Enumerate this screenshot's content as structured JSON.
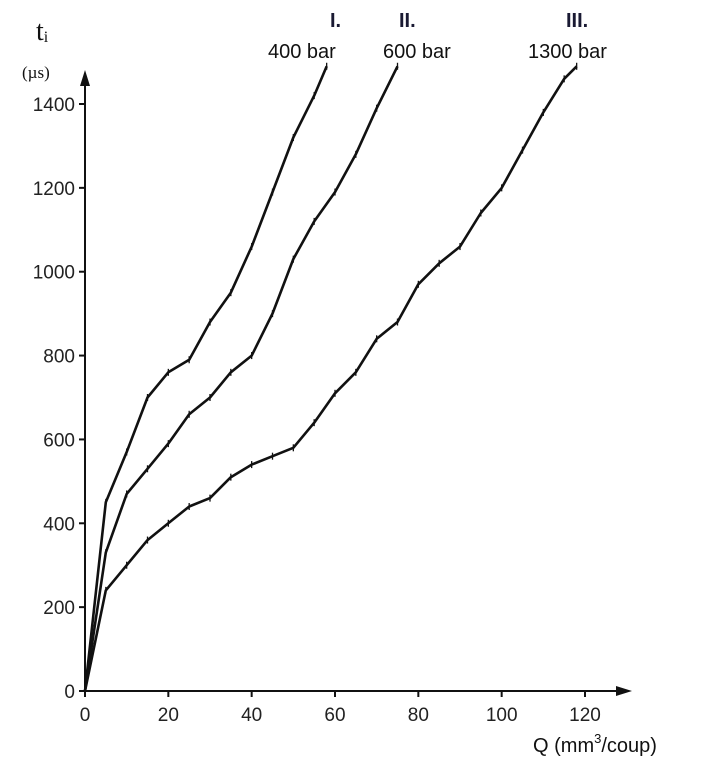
{
  "chart_data": {
    "type": "line",
    "ylabel": "t",
    "ylabel_subscript": "i",
    "yunit": "(µs)",
    "xlabel": "Q",
    "xunit_prefix": "(mm",
    "xunit_sup": "3",
    "xunit_suffix": "/coup)",
    "xlim": [
      0,
      120
    ],
    "ylim": [
      0,
      1400
    ],
    "xticks": [
      0,
      20,
      40,
      60,
      80,
      100,
      120
    ],
    "yticks": [
      0,
      200,
      400,
      600,
      800,
      1000,
      1200,
      1400
    ],
    "series": [
      {
        "id": "I",
        "name": "I.",
        "label": "400 bar",
        "x": [
          0,
          5,
          10,
          15,
          20,
          25,
          30,
          35,
          40,
          45,
          50,
          55,
          58
        ],
        "y": [
          0,
          450,
          570,
          700,
          760,
          790,
          880,
          950,
          1060,
          1190,
          1320,
          1420,
          1490
        ]
      },
      {
        "id": "II",
        "name": "II.",
        "label": "600 bar",
        "x": [
          0,
          5,
          10,
          15,
          20,
          25,
          30,
          35,
          40,
          45,
          50,
          55,
          60,
          65,
          70,
          75
        ],
        "y": [
          0,
          330,
          470,
          530,
          590,
          660,
          700,
          760,
          800,
          900,
          1030,
          1120,
          1190,
          1280,
          1390,
          1490
        ]
      },
      {
        "id": "III",
        "name": "III.",
        "label": "1300 bar",
        "x": [
          0,
          5,
          10,
          15,
          20,
          25,
          30,
          35,
          40,
          45,
          50,
          55,
          60,
          65,
          70,
          75,
          80,
          85,
          90,
          95,
          100,
          105,
          110,
          115,
          118
        ],
        "y": [
          0,
          240,
          300,
          360,
          400,
          440,
          460,
          510,
          540,
          560,
          580,
          640,
          710,
          760,
          840,
          880,
          970,
          1020,
          1060,
          1140,
          1200,
          1290,
          1380,
          1460,
          1490
        ]
      }
    ]
  }
}
